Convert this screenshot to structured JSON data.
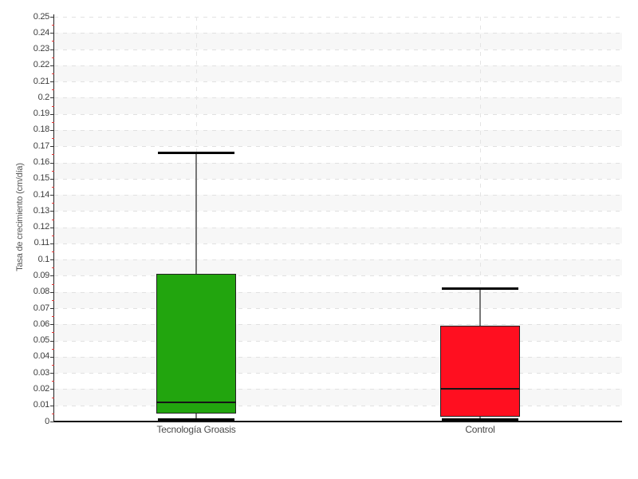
{
  "chart_data": {
    "type": "boxplot",
    "title": "",
    "xlabel": "",
    "ylabel": "Tasa de crecimiento (cm/día)",
    "ylim": [
      0,
      0.25
    ],
    "ytick_step": 0.01,
    "yminor_step": 0.005,
    "ytick_labels": [
      "0",
      "0.01",
      "0.02",
      "0.03",
      "0.04",
      "0.05",
      "0.06",
      "0.07",
      "0.08",
      "0.09",
      "0.1",
      "0.11",
      "0.12",
      "0.13",
      "0.14",
      "0.15",
      "0.16",
      "0.17",
      "0.18",
      "0.19",
      "0.2",
      "0.21",
      "0.22",
      "0.23",
      "0.24",
      "0.25"
    ],
    "grid": {
      "horizontal_dashed": true,
      "vertical_dashed_at_categories": true,
      "zebra_bands": true
    },
    "legend_position": "none",
    "categories": [
      "Tecnología Groasis",
      "Control"
    ],
    "series": [
      {
        "name": "Tecnología Groasis",
        "color": "#22a50e",
        "min": 0.001,
        "q1": 0.005,
        "median": 0.012,
        "q3": 0.091,
        "max": 0.166
      },
      {
        "name": "Control",
        "color": "#ff0f20",
        "min": 0.001,
        "q1": 0.003,
        "median": 0.02,
        "q3": 0.059,
        "max": 0.082
      }
    ]
  },
  "colors": {
    "band_shade": "#f7f7f7",
    "grid_dash": "#e1e1e1",
    "axis": "#111111",
    "tick_major": "#333333",
    "tick_minor": "#e03232",
    "tick_label": "#3d3d3d",
    "category_label": "#4a4a4a",
    "axis_title": "#555555",
    "whisker": "#777777",
    "whisker_cap": "#000000",
    "box_border": "#222222",
    "median_line": "#151515"
  }
}
